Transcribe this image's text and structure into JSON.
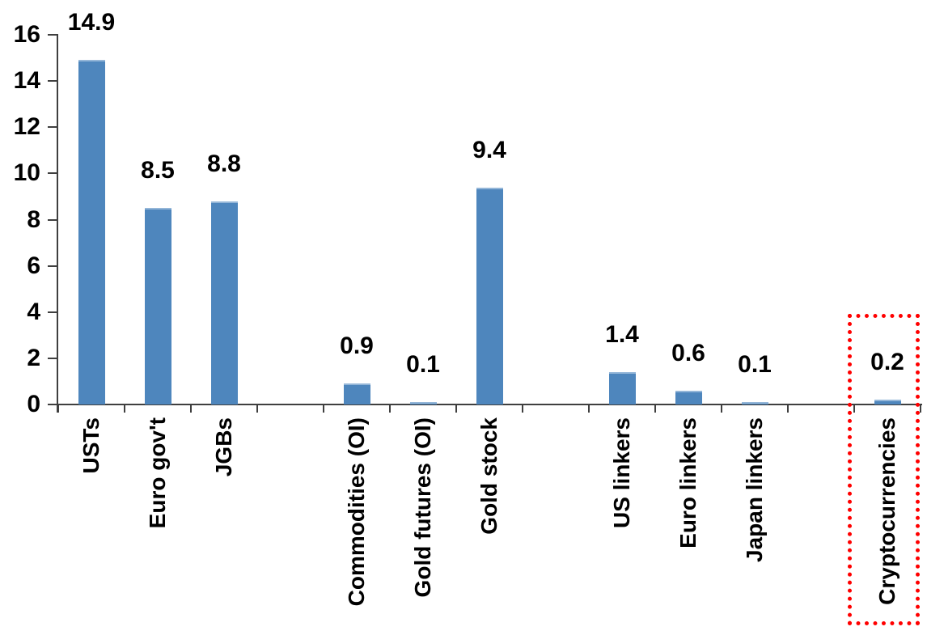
{
  "chart_data": {
    "type": "bar",
    "title": "",
    "xlabel": "",
    "ylabel": "",
    "ylim": [
      0,
      16
    ],
    "y_ticks": [
      0,
      2,
      4,
      6,
      8,
      10,
      12,
      14,
      16
    ],
    "grid": "off",
    "legend": "none",
    "categories": [
      "USTs",
      "Euro gov't",
      "JGBs",
      "Commodities (OI)",
      "Gold futures (OI)",
      "Gold stock",
      "US linkers",
      "Euro linkers",
      "Japan linkers",
      "Cryptocurrencies"
    ],
    "values": [
      14.9,
      8.5,
      8.8,
      0.9,
      0.1,
      9.4,
      1.4,
      0.6,
      0.1,
      0.2
    ],
    "data_labels": [
      "14.9",
      "8.5",
      "8.8",
      "0.9",
      "0.1",
      "9.4",
      "1.4",
      "0.6",
      "0.1",
      "0.2"
    ],
    "groups": [
      {
        "items": [
          {
            "label": "USTs",
            "value": 14.9,
            "value_label": "14.9"
          },
          {
            "label": "Euro gov't",
            "value": 8.5,
            "value_label": "8.5"
          },
          {
            "label": "JGBs",
            "value": 8.8,
            "value_label": "8.8"
          }
        ]
      },
      {
        "items": [
          {
            "label": "Commodities (OI)",
            "value": 0.9,
            "value_label": "0.9"
          },
          {
            "label": "Gold futures (OI)",
            "value": 0.1,
            "value_label": "0.1"
          },
          {
            "label": "Gold stock",
            "value": 9.4,
            "value_label": "9.4"
          }
        ]
      },
      {
        "items": [
          {
            "label": "US linkers",
            "value": 1.4,
            "value_label": "1.4"
          },
          {
            "label": "Euro linkers",
            "value": 0.6,
            "value_label": "0.6"
          },
          {
            "label": "Japan linkers",
            "value": 0.1,
            "value_label": "0.1"
          }
        ]
      },
      {
        "items": [
          {
            "label": "Cryptocurrencies",
            "value": 0.2,
            "value_label": "0.2"
          }
        ]
      }
    ],
    "colors": {
      "bar": "#4e86bd",
      "bar_top_edge": "#94b6d8",
      "axis": "#3f3f3f",
      "text": "#000000",
      "highlight": "#ff0000"
    },
    "highlight": {
      "category": "Cryptocurrencies",
      "shape": "dotted-box",
      "color": "#ff0000"
    }
  }
}
